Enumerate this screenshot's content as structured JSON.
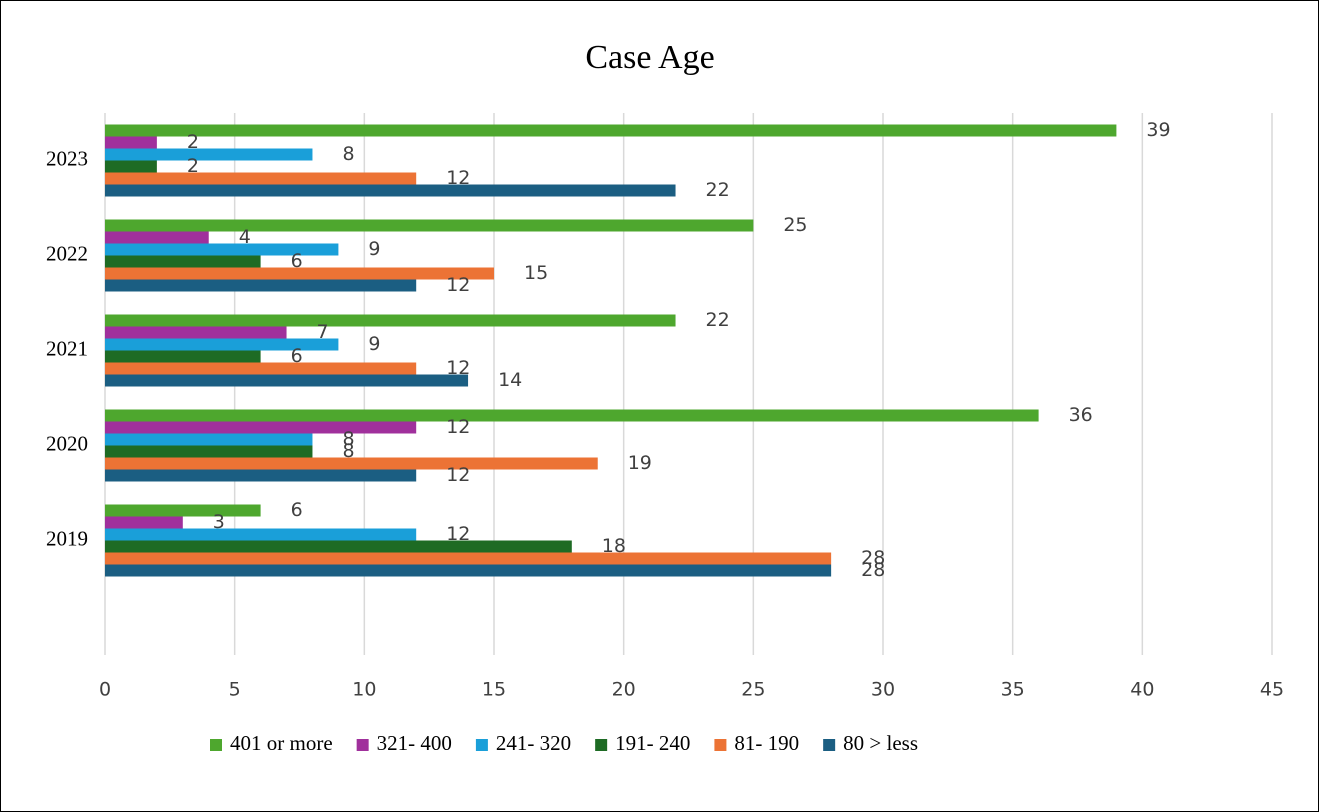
{
  "chart_data": {
    "type": "hbar",
    "title": "Case Age",
    "categories": [
      "2019",
      "2020",
      "2021",
      "2022",
      "2023"
    ],
    "series": [
      {
        "name": "401 or more",
        "color": "#4ea72e",
        "values": [
          6,
          36,
          22,
          25,
          39
        ]
      },
      {
        "name": "321- 400",
        "color": "#a0309c",
        "values": [
          3,
          12,
          7,
          4,
          2
        ]
      },
      {
        "name": "241- 320",
        "color": "#1a9fd9",
        "values": [
          12,
          8,
          9,
          9,
          8
        ]
      },
      {
        "name": "191- 240",
        "color": "#1e6b24",
        "values": [
          18,
          8,
          6,
          6,
          2
        ]
      },
      {
        "name": "81- 190",
        "color": "#ec7335",
        "values": [
          28,
          19,
          12,
          15,
          12
        ]
      },
      {
        "name": "80 > less",
        "color": "#1b5e82",
        "values": [
          28,
          12,
          14,
          12,
          22
        ]
      }
    ],
    "xlim": [
      0,
      45
    ],
    "xticks": [
      0,
      5,
      10,
      15,
      20,
      25,
      30,
      35,
      40,
      45
    ],
    "grid": true,
    "legend": "bottom"
  }
}
